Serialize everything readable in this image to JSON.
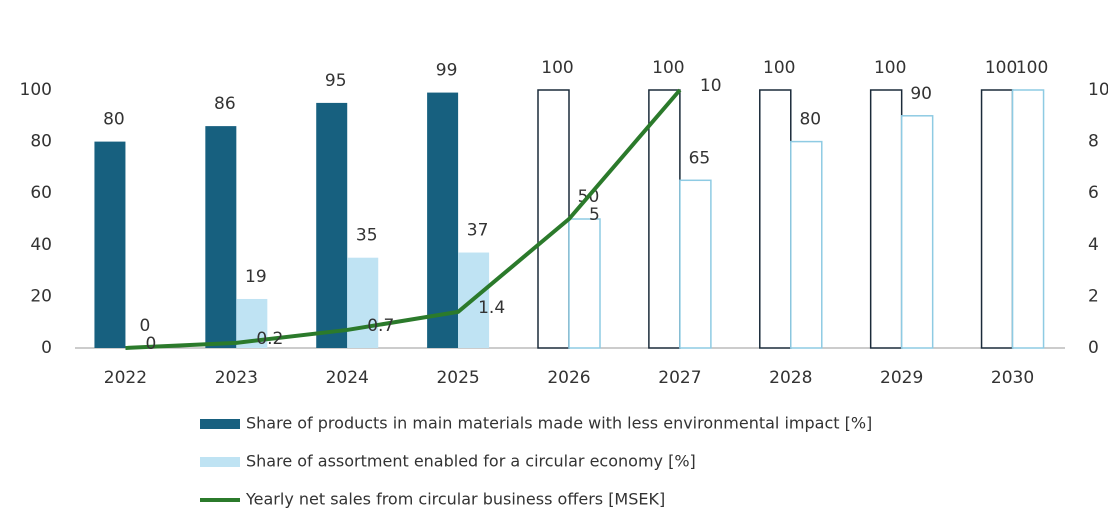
{
  "chart_data": {
    "type": "bar-line",
    "categories": [
      "2022",
      "2023",
      "2024",
      "2025",
      "2026",
      "2027",
      "2028",
      "2029",
      "2030"
    ],
    "series": [
      {
        "name": "Share of products in main materials made with less environmental impact [%]",
        "color": "#17607f",
        "type": "bar",
        "values": [
          80,
          86,
          95,
          99,
          100,
          100,
          100,
          100,
          100
        ],
        "outlined": [
          false,
          false,
          false,
          false,
          true,
          true,
          true,
          true,
          true
        ]
      },
      {
        "name": "Share of assortment enabled for a circular economy [%]",
        "color": "#bfe3f3",
        "type": "bar",
        "values": [
          0,
          19,
          35,
          37,
          50,
          65,
          80,
          90,
          100
        ],
        "outlined": [
          false,
          false,
          false,
          false,
          true,
          true,
          true,
          true,
          true
        ]
      },
      {
        "name": "Yearly net sales from circular business offers [MSEK]",
        "color": "#2b7a2b",
        "type": "line",
        "axis": "y2",
        "values": [
          0,
          0.2,
          0.7,
          1.4,
          5,
          10,
          null,
          null,
          null
        ]
      }
    ],
    "ylim": [
      0,
      100
    ],
    "yticks": [
      0,
      20,
      40,
      60,
      80,
      100
    ],
    "y2lim": [
      0,
      10
    ],
    "y2ticks": [
      0,
      2,
      4,
      6,
      8,
      10
    ],
    "grid": false,
    "legend": "bottom"
  }
}
